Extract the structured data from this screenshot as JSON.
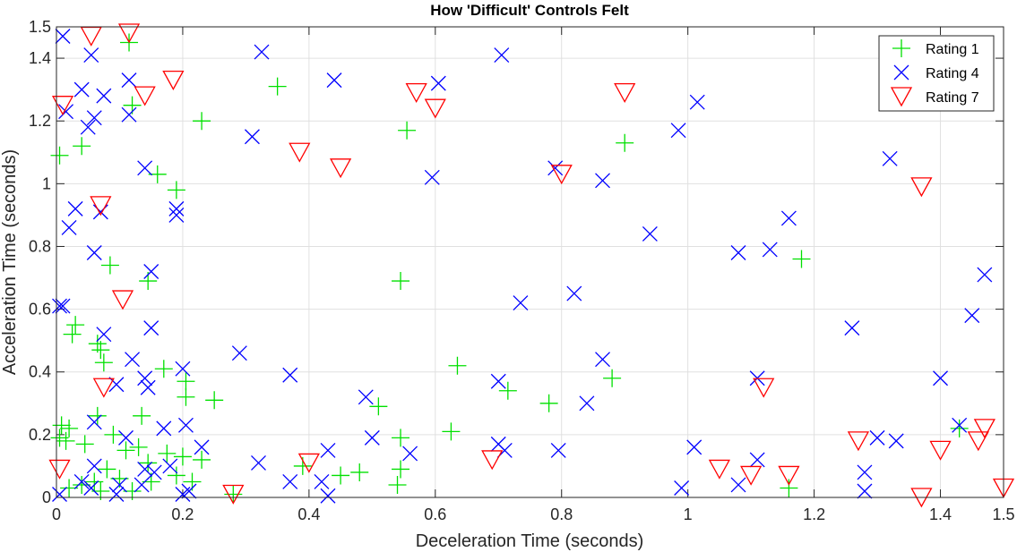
{
  "chart_data": {
    "type": "scatter",
    "title": "How 'Difficult' Controls Felt",
    "xlabel": "Deceleration Time (seconds)",
    "ylabel": "Acceleration Time (seconds)",
    "xlim": [
      0,
      1.5
    ],
    "ylim": [
      0,
      1.5
    ],
    "xticks": [
      "0",
      "0.2",
      "0.4",
      "0.6",
      "0.8",
      "1",
      "1.2",
      "1.4",
      "1.5"
    ],
    "yticks": [
      "0",
      "0.2",
      "0.4",
      "0.6",
      "0.8",
      "1",
      "1.2",
      "1.4",
      "1.5"
    ],
    "grid": true,
    "legend_position": "top-right",
    "series": [
      {
        "name": "Rating 1",
        "marker": "plus",
        "color": "#00e000",
        "points": [
          [
            0.115,
            1.45
          ],
          [
            0.12,
            1.25
          ],
          [
            0.35,
            1.31
          ],
          [
            0.23,
            1.2
          ],
          [
            0.04,
            1.12
          ],
          [
            0.005,
            1.09
          ],
          [
            0.555,
            1.17
          ],
          [
            0.9,
            1.13
          ],
          [
            0.16,
            1.03
          ],
          [
            0.19,
            0.98
          ],
          [
            1.18,
            0.76
          ],
          [
            0.085,
            0.74
          ],
          [
            0.145,
            0.69
          ],
          [
            0.545,
            0.69
          ],
          [
            0.03,
            0.55
          ],
          [
            0.025,
            0.52
          ],
          [
            0.065,
            0.49
          ],
          [
            0.07,
            0.47
          ],
          [
            0.075,
            0.43
          ],
          [
            0.17,
            0.41
          ],
          [
            0.205,
            0.37
          ],
          [
            0.635,
            0.42
          ],
          [
            0.88,
            0.38
          ],
          [
            0.715,
            0.34
          ],
          [
            0.78,
            0.3
          ],
          [
            0.205,
            0.32
          ],
          [
            0.25,
            0.31
          ],
          [
            0.51,
            0.29
          ],
          [
            0.135,
            0.26
          ],
          [
            0.065,
            0.26
          ],
          [
            0.008,
            0.23
          ],
          [
            0.02,
            0.22
          ],
          [
            0.625,
            0.21
          ],
          [
            0.545,
            0.19
          ],
          [
            0.005,
            0.19
          ],
          [
            0.015,
            0.18
          ],
          [
            0.045,
            0.17
          ],
          [
            0.09,
            0.2
          ],
          [
            0.13,
            0.16
          ],
          [
            0.11,
            0.15
          ],
          [
            0.175,
            0.14
          ],
          [
            0.2,
            0.13
          ],
          [
            0.23,
            0.12
          ],
          [
            0.145,
            0.11
          ],
          [
            0.08,
            0.09
          ],
          [
            0.06,
            0.05
          ],
          [
            0.04,
            0.04
          ],
          [
            0.1,
            0.06
          ],
          [
            0.15,
            0.05
          ],
          [
            0.19,
            0.07
          ],
          [
            0.28,
            0.01
          ],
          [
            0.39,
            0.1
          ],
          [
            0.45,
            0.07
          ],
          [
            0.48,
            0.08
          ],
          [
            0.54,
            0.04
          ],
          [
            0.545,
            0.09
          ],
          [
            1.16,
            0.03
          ],
          [
            1.43,
            0.22
          ],
          [
            0.12,
            0.02
          ],
          [
            0.07,
            0.02
          ],
          [
            0.02,
            0.03
          ],
          [
            0.215,
            0.05
          ]
        ]
      },
      {
        "name": "Rating 4",
        "marker": "x",
        "color": "#0000ff",
        "points": [
          [
            0.01,
            1.47
          ],
          [
            0.055,
            1.41
          ],
          [
            0.04,
            1.3
          ],
          [
            0.075,
            1.28
          ],
          [
            0.115,
            1.33
          ],
          [
            0.325,
            1.42
          ],
          [
            0.44,
            1.33
          ],
          [
            0.605,
            1.32
          ],
          [
            0.705,
            1.41
          ],
          [
            0.015,
            1.23
          ],
          [
            0.06,
            1.21
          ],
          [
            0.05,
            1.18
          ],
          [
            0.115,
            1.22
          ],
          [
            0.31,
            1.15
          ],
          [
            0.985,
            1.17
          ],
          [
            1.015,
            1.26
          ],
          [
            0.595,
            1.02
          ],
          [
            0.79,
            1.05
          ],
          [
            0.865,
            1.01
          ],
          [
            1.32,
            1.08
          ],
          [
            0.14,
            1.05
          ],
          [
            0.03,
            0.92
          ],
          [
            0.07,
            0.91
          ],
          [
            0.19,
            0.92
          ],
          [
            0.19,
            0.9
          ],
          [
            1.16,
            0.89
          ],
          [
            0.02,
            0.86
          ],
          [
            0.94,
            0.84
          ],
          [
            0.06,
            0.78
          ],
          [
            1.08,
            0.78
          ],
          [
            1.13,
            0.79
          ],
          [
            0.15,
            0.72
          ],
          [
            1.47,
            0.71
          ],
          [
            0.82,
            0.65
          ],
          [
            0.735,
            0.62
          ],
          [
            0.01,
            0.61
          ],
          [
            1.45,
            0.58
          ],
          [
            0.005,
            0.61
          ],
          [
            1.26,
            0.54
          ],
          [
            0.075,
            0.52
          ],
          [
            0.15,
            0.54
          ],
          [
            0.29,
            0.46
          ],
          [
            0.865,
            0.44
          ],
          [
            0.12,
            0.44
          ],
          [
            0.37,
            0.39
          ],
          [
            0.14,
            0.38
          ],
          [
            0.2,
            0.41
          ],
          [
            0.7,
            0.37
          ],
          [
            1.11,
            0.38
          ],
          [
            1.4,
            0.38
          ],
          [
            0.095,
            0.36
          ],
          [
            0.145,
            0.35
          ],
          [
            0.49,
            0.32
          ],
          [
            0.84,
            0.3
          ],
          [
            0.06,
            0.24
          ],
          [
            0.17,
            0.22
          ],
          [
            0.205,
            0.23
          ],
          [
            0.11,
            0.19
          ],
          [
            0.5,
            0.19
          ],
          [
            0.23,
            0.16
          ],
          [
            0.56,
            0.14
          ],
          [
            0.7,
            0.17
          ],
          [
            0.71,
            0.15
          ],
          [
            0.795,
            0.15
          ],
          [
            1.01,
            0.16
          ],
          [
            1.43,
            0.23
          ],
          [
            1.3,
            0.19
          ],
          [
            1.33,
            0.18
          ],
          [
            0.32,
            0.11
          ],
          [
            0.43,
            0.15
          ],
          [
            1.11,
            0.12
          ],
          [
            0.06,
            0.1
          ],
          [
            0.04,
            0.05
          ],
          [
            0.14,
            0.09
          ],
          [
            0.155,
            0.08
          ],
          [
            0.18,
            0.1
          ],
          [
            0.21,
            0.02
          ],
          [
            0.2,
            0.01
          ],
          [
            0.1,
            0.04
          ],
          [
            0.37,
            0.05
          ],
          [
            0.42,
            0.05
          ],
          [
            0.43,
            0.005
          ],
          [
            0.99,
            0.03
          ],
          [
            1.08,
            0.04
          ],
          [
            1.28,
            0.02
          ],
          [
            1.28,
            0.08
          ],
          [
            0.005,
            0.01
          ],
          [
            0.055,
            0.03
          ],
          [
            0.095,
            0.01
          ],
          [
            0.135,
            0.04
          ]
        ]
      },
      {
        "name": "Rating 7",
        "marker": "triangle-down",
        "color": "#ff0000",
        "points": [
          [
            0.055,
            1.47
          ],
          [
            0.115,
            1.48
          ],
          [
            0.01,
            1.25
          ],
          [
            0.14,
            1.28
          ],
          [
            0.185,
            1.33
          ],
          [
            0.57,
            1.29
          ],
          [
            0.6,
            1.24
          ],
          [
            0.9,
            1.29
          ],
          [
            0.385,
            1.1
          ],
          [
            0.45,
            1.05
          ],
          [
            0.8,
            1.03
          ],
          [
            1.37,
            0.99
          ],
          [
            0.07,
            0.93
          ],
          [
            0.105,
            0.63
          ],
          [
            0.075,
            0.35
          ],
          [
            1.12,
            0.35
          ],
          [
            0.005,
            0.09
          ],
          [
            0.28,
            0.01
          ],
          [
            0.4,
            0.11
          ],
          [
            0.69,
            0.12
          ],
          [
            1.05,
            0.09
          ],
          [
            1.1,
            0.07
          ],
          [
            1.16,
            0.07
          ],
          [
            1.27,
            0.18
          ],
          [
            1.37,
            0.0
          ],
          [
            1.4,
            0.15
          ],
          [
            1.46,
            0.18
          ],
          [
            1.47,
            0.22
          ],
          [
            1.5,
            0.03
          ]
        ]
      }
    ]
  }
}
